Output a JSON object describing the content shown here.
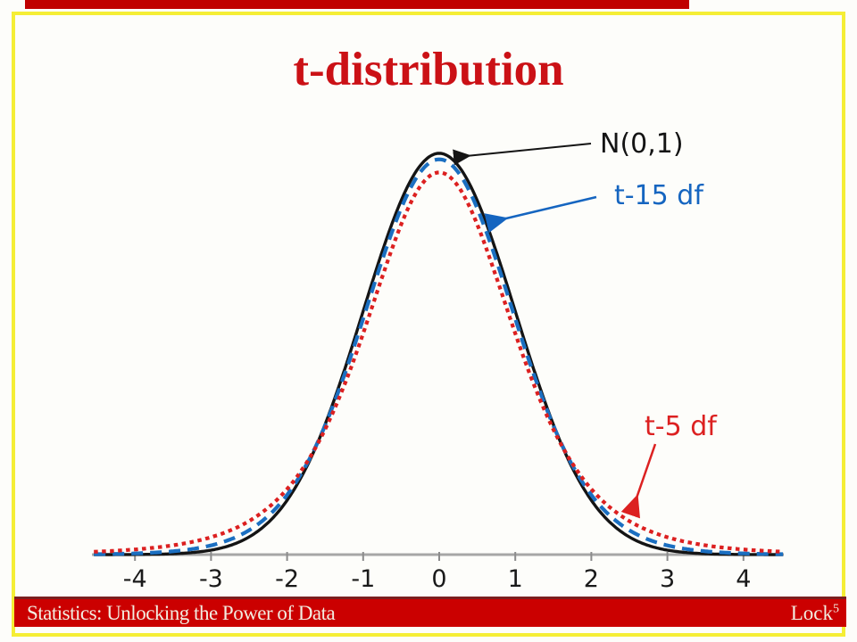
{
  "slide": {
    "title": "t-distribution"
  },
  "footer": {
    "left": "Statistics: Unlocking the Power of Data",
    "brand": "Lock",
    "brand_sup": "5"
  },
  "colors": {
    "border_yellow": "#F5EE35",
    "top_bar_red": "#C00000",
    "footer_bar_red": "#CB0000",
    "footer_bar_edge": "#7B1F1F",
    "title_red": "#CB1116",
    "footer_text": "#F2EDE1",
    "axis_gray": "#A6A6A6",
    "tick_label_color": "#1A1A1A"
  },
  "chart_data": {
    "type": "line",
    "title": "",
    "xlabel": "",
    "ylabel": "",
    "x_range": [
      -4.54,
      4.52
    ],
    "x_ticks": [
      "-4",
      "-3",
      "-2",
      "-1",
      "0",
      "1",
      "2",
      "3",
      "4"
    ],
    "x_tick_values": [
      -4,
      -3,
      -2,
      -1,
      0,
      1,
      2,
      3,
      4
    ],
    "grid": false,
    "legend_position": "inline-annotations",
    "series": [
      {
        "name": "N(0,1)",
        "distribution": "normal",
        "df": null,
        "peak_density": 0.399,
        "color": "#141414",
        "line_style": "solid"
      },
      {
        "name": "t-15 df",
        "distribution": "t",
        "df": 15,
        "peak_density": 0.393,
        "color": "#1B6FC1",
        "line_style": "dashed"
      },
      {
        "name": "t-5 df",
        "distribution": "t",
        "df": 5,
        "peak_density": 0.38,
        "color": "#DC2020",
        "line_style": "dotted"
      }
    ],
    "annotations": [
      {
        "text": "N(0,1)",
        "color": "#141414",
        "points_to": "peak of standard normal curve"
      },
      {
        "text": "t-15 df",
        "color": "#1565C0",
        "points_to": "right flank of t with 15 df"
      },
      {
        "text": "t-5 df",
        "color": "#DC2121",
        "points_to": "right tail of t with 5 df"
      }
    ]
  }
}
